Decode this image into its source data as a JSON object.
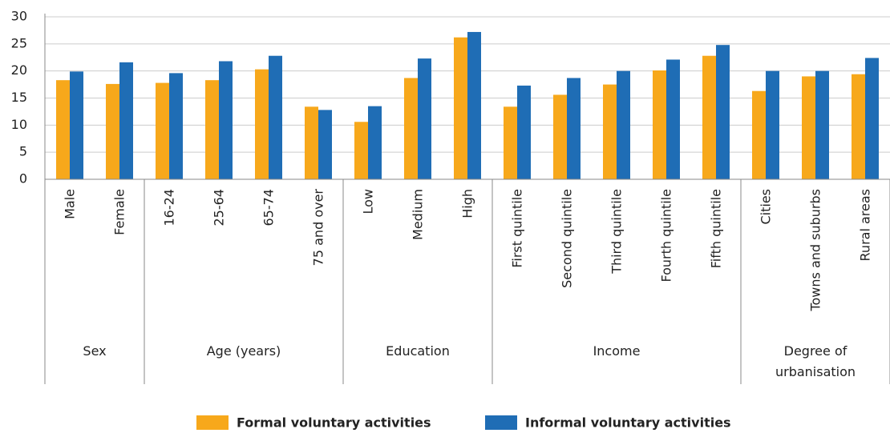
{
  "chart_data": {
    "type": "bar",
    "groups": [
      {
        "name": "Sex",
        "categories": [
          "Male",
          "Female"
        ]
      },
      {
        "name": "Age (years)",
        "categories": [
          "16-24",
          "25-64",
          "65-74",
          "75 and over"
        ]
      },
      {
        "name": "Education",
        "categories": [
          "Low",
          "Medium",
          "High"
        ]
      },
      {
        "name": "Income",
        "categories": [
          "First quintile",
          "Second quintile",
          "Third quintile",
          "Fourth quintile",
          "Fifth quintile"
        ]
      },
      {
        "name": "Degree of urbanisation",
        "categories": [
          "Cities",
          "Towns and suburbs",
          "Rural areas"
        ]
      }
    ],
    "series": [
      {
        "name": "Formal voluntary activities",
        "color": "#f7a81b",
        "values": [
          18.3,
          17.6,
          17.8,
          18.3,
          20.3,
          13.4,
          10.6,
          18.7,
          26.2,
          13.4,
          15.6,
          17.5,
          20.1,
          22.8,
          16.3,
          19.0,
          19.4
        ]
      },
      {
        "name": "Informal voluntary activities",
        "color": "#1f6db5",
        "values": [
          19.9,
          21.6,
          19.6,
          21.8,
          22.8,
          12.8,
          13.5,
          22.3,
          27.2,
          17.3,
          18.7,
          20.0,
          22.1,
          24.8,
          20.0,
          20.0,
          22.4
        ]
      }
    ],
    "ylim": [
      0,
      30
    ],
    "yticks": [
      0,
      5,
      10,
      15,
      20,
      25,
      30
    ],
    "grid": true,
    "legend": "bottom"
  }
}
